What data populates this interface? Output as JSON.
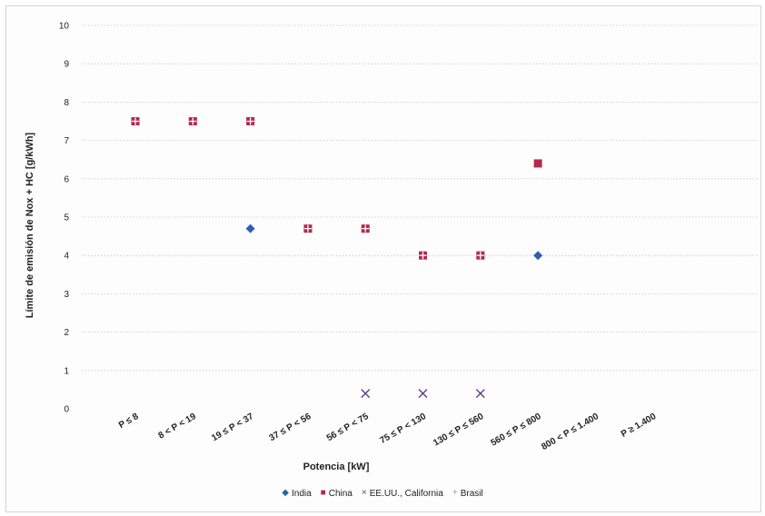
{
  "chart_data": {
    "type": "scatter",
    "title": "",
    "xlabel": "Potencia [kW]",
    "ylabel": "Límite de emisión de Nox + HC [g/kWh]",
    "ylim": [
      0,
      10
    ],
    "yticks": [
      "0",
      "1",
      "2",
      "3",
      "4",
      "5",
      "6",
      "7",
      "8",
      "9",
      "10"
    ],
    "categories": [
      "P ≤ 8",
      "8 < P < 19",
      "19 ≤ P < 37",
      "37 ≤ P < 56",
      "56 ≤ P < 75",
      "75 ≤ P < 130",
      "130 ≤ P ≤ 560",
      "560 ≤ P ≤ 800",
      "800 < P ≤ 1.400",
      "P ≥ 1.400"
    ],
    "grid": "horizontal dotted",
    "legend_position": "bottom",
    "series": [
      {
        "name": "India",
        "marker": "diamond",
        "color": "#2e5fb5",
        "values": [
          null,
          null,
          4.7,
          null,
          null,
          null,
          null,
          4.0,
          null,
          null
        ]
      },
      {
        "name": "China",
        "marker": "square",
        "color": "#b5284a",
        "values": [
          7.5,
          7.5,
          7.5,
          4.7,
          4.7,
          4.0,
          4.0,
          6.4,
          null,
          null
        ]
      },
      {
        "name": "EE.UU., California",
        "marker": "x",
        "color": "#5a3d8c",
        "values": [
          null,
          null,
          null,
          null,
          0.4,
          0.4,
          0.4,
          null,
          null,
          null
        ]
      },
      {
        "name": "Brasil",
        "marker": "plus",
        "color": "#9a9ab5",
        "values": [
          7.5,
          7.5,
          7.5,
          4.7,
          4.7,
          4.0,
          4.0,
          null,
          null,
          null
        ]
      }
    ]
  }
}
